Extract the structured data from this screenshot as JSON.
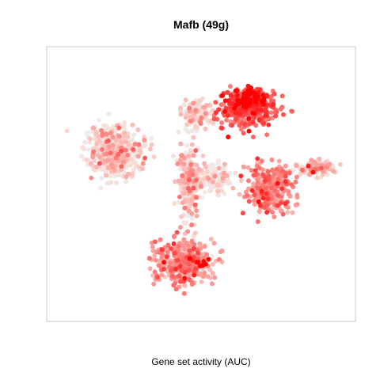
{
  "chart_data": {
    "type": "scatter",
    "title": "Mafb (49g)",
    "xlabel": "Gene set activity (AUC)",
    "ylabel": "",
    "axes_visible": false,
    "grid": false,
    "legend": "none",
    "colors": {
      "low": "#ececec",
      "mid": "#fadcd6",
      "high": "#ff0000",
      "frame": "#c8c8c8"
    },
    "point_groups": [
      {
        "name": "upper-left cluster",
        "center": [
          -0.72,
          0.3
        ],
        "spread": [
          0.2,
          0.23
        ],
        "n": 520,
        "activity": 0.12
      },
      {
        "name": "central band",
        "center": [
          -0.1,
          0.03
        ],
        "spread": [
          0.08,
          0.3
        ],
        "n": 260,
        "activity": 0.18
      },
      {
        "name": "mid-top cluster",
        "center": [
          -0.05,
          0.65
        ],
        "spread": [
          0.12,
          0.12
        ],
        "n": 120,
        "activity": 0.14
      },
      {
        "name": "center-right grey",
        "center": [
          0.1,
          0.05
        ],
        "spread": [
          0.12,
          0.12
        ],
        "n": 140,
        "activity": 0.05
      },
      {
        "name": "upper-right cluster",
        "center": [
          0.38,
          0.7
        ],
        "spread": [
          0.2,
          0.16
        ],
        "n": 380,
        "activity": 0.62
      },
      {
        "name": "right cluster",
        "center": [
          0.55,
          -0.05
        ],
        "spread": [
          0.18,
          0.22
        ],
        "n": 300,
        "activity": 0.42
      },
      {
        "name": "far-right arm",
        "center": [
          0.95,
          0.15
        ],
        "spread": [
          0.14,
          0.07
        ],
        "n": 110,
        "activity": 0.22
      },
      {
        "name": "bottom cluster",
        "center": [
          -0.15,
          -0.72
        ],
        "spread": [
          0.22,
          0.2
        ],
        "n": 400,
        "activity": 0.38
      }
    ],
    "hotspots": [
      {
        "center": [
          0.38,
          0.8
        ],
        "spread": [
          0.09,
          0.08
        ],
        "n": 70,
        "activity": 0.95
      },
      {
        "center": [
          0.0,
          -0.75
        ],
        "spread": [
          0.05,
          0.05
        ],
        "n": 12,
        "activity": 0.95
      }
    ]
  }
}
